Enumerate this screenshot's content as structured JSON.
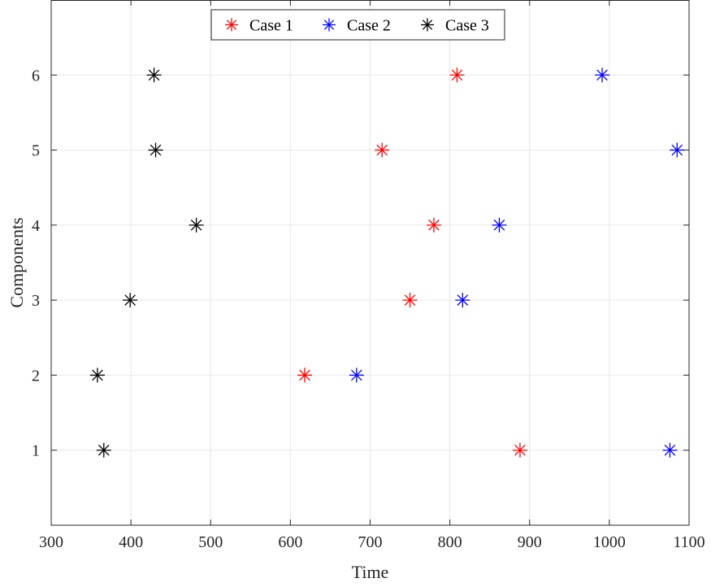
{
  "chart_data": {
    "type": "scatter",
    "xlabel": "Time",
    "ylabel": "Components",
    "xlim": [
      300,
      1100
    ],
    "ylim": [
      0,
      7
    ],
    "xticks": [
      300,
      400,
      500,
      600,
      700,
      800,
      900,
      1000,
      1100
    ],
    "yticks": [
      1,
      2,
      3,
      4,
      5,
      6
    ],
    "grid": true,
    "legend_placement": "top-center",
    "marker": "asterisk",
    "series": [
      {
        "name": "Case 1",
        "color": "#ff0000",
        "points": [
          {
            "x": 888,
            "y": 1
          },
          {
            "x": 618,
            "y": 2
          },
          {
            "x": 750,
            "y": 3
          },
          {
            "x": 780,
            "y": 4
          },
          {
            "x": 715,
            "y": 5
          },
          {
            "x": 809,
            "y": 6
          }
        ]
      },
      {
        "name": "Case 2",
        "color": "#0000ff",
        "points": [
          {
            "x": 1076,
            "y": 1
          },
          {
            "x": 683,
            "y": 2
          },
          {
            "x": 816,
            "y": 3
          },
          {
            "x": 862,
            "y": 4
          },
          {
            "x": 1085,
            "y": 5
          },
          {
            "x": 991,
            "y": 6
          }
        ]
      },
      {
        "name": "Case 3",
        "color": "#000000",
        "points": [
          {
            "x": 366,
            "y": 1
          },
          {
            "x": 358,
            "y": 2
          },
          {
            "x": 399,
            "y": 3
          },
          {
            "x": 482,
            "y": 4
          },
          {
            "x": 431,
            "y": 5
          },
          {
            "x": 429,
            "y": 6
          }
        ]
      }
    ]
  }
}
